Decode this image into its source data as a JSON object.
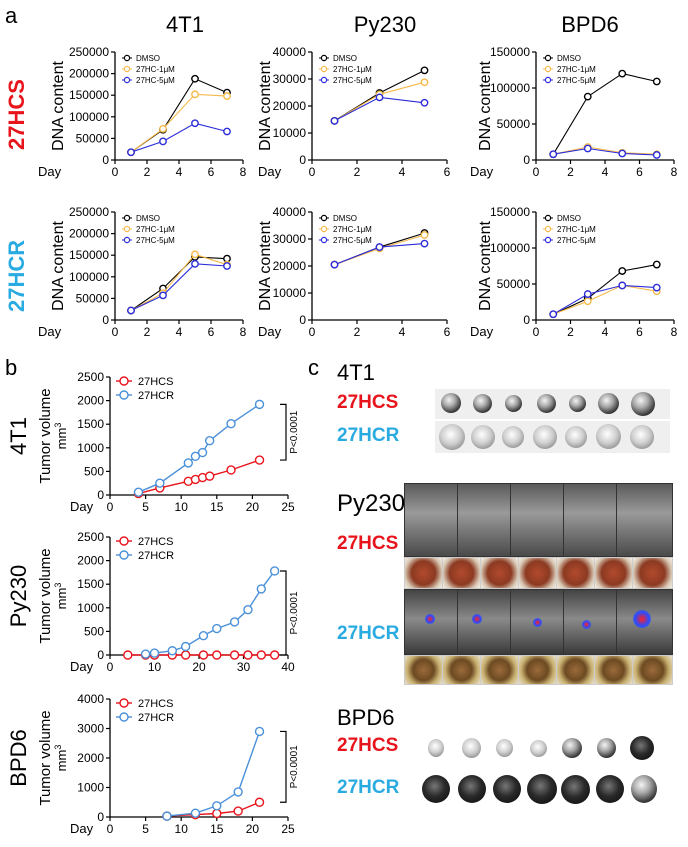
{
  "panel_letters": {
    "a": "a",
    "b": "b",
    "c": "c"
  },
  "panel_a": {
    "col_titles": [
      "4T1",
      "Py230",
      "BPD6"
    ],
    "row_labels": [
      "27HCS",
      "27HCR"
    ],
    "ylabel": "DNA content",
    "xlabel": "Day",
    "legend": [
      "DMSO",
      "27HC-1μM",
      "27HC-5μM"
    ]
  },
  "panel_b": {
    "ylabel_main": "Tumor volume",
    "ylabel_unit": "mm",
    "ylabel_sup": "3",
    "xlabel": "Day",
    "legend": [
      "27HCS",
      "27HCR"
    ],
    "pvalue": "P<0.0001",
    "row_labels": [
      "4T1",
      "Py230",
      "BPD6"
    ]
  },
  "panel_c": {
    "groups": [
      "4T1",
      "Py230",
      "BPD6"
    ],
    "rows": [
      "27HCS",
      "27HCR"
    ]
  },
  "colors": {
    "dmso": "#000000",
    "hc1": "#f5b94a",
    "hc5": "#2b2bd9",
    "hcs": "#e8141c",
    "hcr": "#4a90d9",
    "label_red": "#e8141c",
    "label_blue": "#29abe2"
  },
  "chart_data": [
    {
      "id": "a-4T1-27HCS",
      "type": "line",
      "title": "",
      "xlabel": "Day",
      "ylabel": "DNA content",
      "xlim": [
        0,
        8
      ],
      "ylim": [
        0,
        250000
      ],
      "xticks": [
        0,
        2,
        4,
        6,
        8
      ],
      "yticks": [
        0,
        50000,
        100000,
        150000,
        200000,
        250000
      ],
      "series": [
        {
          "name": "DMSO",
          "x": [
            1,
            3,
            5,
            7
          ],
          "y": [
            18000,
            70000,
            188000,
            156000
          ]
        },
        {
          "name": "27HC-1μM",
          "x": [
            1,
            3,
            5,
            7
          ],
          "y": [
            18000,
            72000,
            152000,
            148000
          ]
        },
        {
          "name": "27HC-5μM",
          "x": [
            1,
            3,
            5,
            7
          ],
          "y": [
            18000,
            43000,
            85000,
            66000
          ]
        }
      ]
    },
    {
      "id": "a-Py230-27HCS",
      "type": "line",
      "title": "",
      "xlabel": "Day",
      "ylabel": "DNA content",
      "xlim": [
        0,
        6
      ],
      "ylim": [
        0,
        40000
      ],
      "xticks": [
        0,
        2,
        4,
        6
      ],
      "yticks": [
        0,
        10000,
        20000,
        30000,
        40000
      ],
      "series": [
        {
          "name": "DMSO",
          "x": [
            1,
            3,
            5
          ],
          "y": [
            14500,
            24800,
            33200
          ]
        },
        {
          "name": "27HC-1μM",
          "x": [
            1,
            3,
            5
          ],
          "y": [
            14500,
            24300,
            28800
          ]
        },
        {
          "name": "27HC-5μM",
          "x": [
            1,
            3,
            5
          ],
          "y": [
            14500,
            23200,
            21200
          ]
        }
      ]
    },
    {
      "id": "a-BPD6-27HCS",
      "type": "line",
      "title": "",
      "xlabel": "Day",
      "ylabel": "DNA content",
      "xlim": [
        0,
        8
      ],
      "ylim": [
        0,
        150000
      ],
      "xticks": [
        0,
        2,
        4,
        6,
        8
      ],
      "yticks": [
        0,
        50000,
        100000,
        150000
      ],
      "series": [
        {
          "name": "DMSO",
          "x": [
            1,
            3,
            5,
            7
          ],
          "y": [
            8000,
            88000,
            120000,
            109000
          ]
        },
        {
          "name": "27HC-1μM",
          "x": [
            1,
            3,
            5,
            7
          ],
          "y": [
            8000,
            18000,
            10000,
            8000
          ]
        },
        {
          "name": "27HC-5μM",
          "x": [
            1,
            3,
            5,
            7
          ],
          "y": [
            8000,
            16000,
            9000,
            7000
          ]
        }
      ]
    },
    {
      "id": "a-4T1-27HCR",
      "type": "line",
      "title": "",
      "xlabel": "Day",
      "ylabel": "DNA content",
      "xlim": [
        0,
        8
      ],
      "ylim": [
        0,
        250000
      ],
      "xticks": [
        0,
        2,
        4,
        6,
        8
      ],
      "yticks": [
        0,
        50000,
        100000,
        150000,
        200000,
        250000
      ],
      "series": [
        {
          "name": "DMSO",
          "x": [
            1,
            3,
            5,
            7
          ],
          "y": [
            22000,
            73000,
            146000,
            142000
          ]
        },
        {
          "name": "27HC-1μM",
          "x": [
            1,
            3,
            5,
            7
          ],
          "y": [
            22000,
            62000,
            152000,
            128000
          ]
        },
        {
          "name": "27HC-5μM",
          "x": [
            1,
            3,
            5,
            7
          ],
          "y": [
            22000,
            57000,
            130000,
            125000
          ]
        }
      ]
    },
    {
      "id": "a-Py230-27HCR",
      "type": "line",
      "title": "",
      "xlabel": "Day",
      "ylabel": "DNA content",
      "xlim": [
        0,
        6
      ],
      "ylim": [
        0,
        40000
      ],
      "xticks": [
        0,
        2,
        4,
        6
      ],
      "yticks": [
        0,
        10000,
        20000,
        30000,
        40000
      ],
      "series": [
        {
          "name": "DMSO",
          "x": [
            1,
            3,
            5
          ],
          "y": [
            20500,
            27000,
            32200
          ]
        },
        {
          "name": "27HC-1μM",
          "x": [
            1,
            3,
            5
          ],
          "y": [
            20500,
            26500,
            31500
          ]
        },
        {
          "name": "27HC-5μM",
          "x": [
            1,
            3,
            5
          ],
          "y": [
            20500,
            27000,
            28300
          ]
        }
      ]
    },
    {
      "id": "a-BPD6-27HCR",
      "type": "line",
      "title": "",
      "xlabel": "Day",
      "ylabel": "DNA content",
      "xlim": [
        0,
        8
      ],
      "ylim": [
        0,
        150000
      ],
      "xticks": [
        0,
        2,
        4,
        6,
        8
      ],
      "yticks": [
        0,
        50000,
        100000,
        150000
      ],
      "series": [
        {
          "name": "DMSO",
          "x": [
            1,
            3,
            5,
            7
          ],
          "y": [
            8000,
            30000,
            68000,
            77000
          ]
        },
        {
          "name": "27HC-1μM",
          "x": [
            1,
            3,
            5,
            7
          ],
          "y": [
            8000,
            26000,
            48000,
            40000
          ]
        },
        {
          "name": "27HC-5μM",
          "x": [
            1,
            3,
            5,
            7
          ],
          "y": [
            8000,
            36000,
            48000,
            45000
          ]
        }
      ]
    },
    {
      "id": "b-4T1",
      "type": "line",
      "title": "",
      "xlabel": "Day",
      "ylabel": "Tumor volume mm3",
      "xlim": [
        0,
        25
      ],
      "ylim": [
        0,
        2500
      ],
      "xticks": [
        0,
        5,
        10,
        15,
        20,
        25
      ],
      "yticks": [
        0,
        500,
        1000,
        1500,
        2000,
        2500
      ],
      "series": [
        {
          "name": "27HCS",
          "x": [
            4,
            7,
            11,
            12,
            13,
            14,
            17,
            21
          ],
          "y": [
            30,
            150,
            290,
            330,
            370,
            400,
            530,
            740
          ]
        },
        {
          "name": "27HCR",
          "x": [
            4,
            7,
            11,
            12,
            13,
            14,
            17,
            21
          ],
          "y": [
            60,
            250,
            680,
            820,
            900,
            1150,
            1510,
            1920
          ]
        }
      ]
    },
    {
      "id": "b-Py230",
      "type": "line",
      "title": "",
      "xlabel": "Day",
      "ylabel": "Tumor volume mm3",
      "xlim": [
        0,
        40
      ],
      "ylim": [
        0,
        2500
      ],
      "xticks": [
        0,
        10,
        20,
        30,
        40
      ],
      "yticks": [
        0,
        500,
        1000,
        1500,
        2000,
        2500
      ],
      "series": [
        {
          "name": "27HCS",
          "x": [
            4,
            8,
            10,
            14,
            17,
            21,
            24,
            28,
            31,
            34,
            37
          ],
          "y": [
            0,
            0,
            0,
            0,
            0,
            0,
            0,
            0,
            0,
            0,
            0
          ]
        },
        {
          "name": "27HCR",
          "x": [
            8,
            10,
            14,
            17,
            21,
            24,
            28,
            31,
            34,
            37
          ],
          "y": [
            20,
            40,
            90,
            180,
            410,
            560,
            700,
            960,
            1400,
            1780
          ]
        }
      ]
    },
    {
      "id": "b-BPD6",
      "type": "line",
      "title": "",
      "xlabel": "Day",
      "ylabel": "Tumor volume mm3",
      "xlim": [
        0,
        25
      ],
      "ylim": [
        0,
        4000
      ],
      "xticks": [
        0,
        5,
        10,
        15,
        20,
        25
      ],
      "yticks": [
        0,
        1000,
        2000,
        3000,
        4000
      ],
      "series": [
        {
          "name": "27HCS",
          "x": [
            8,
            12,
            15,
            18,
            21
          ],
          "y": [
            30,
            80,
            120,
            200,
            500
          ]
        },
        {
          "name": "27HCR",
          "x": [
            8,
            12,
            15,
            18,
            21
          ],
          "y": [
            30,
            130,
            380,
            850,
            2900
          ]
        }
      ]
    }
  ]
}
